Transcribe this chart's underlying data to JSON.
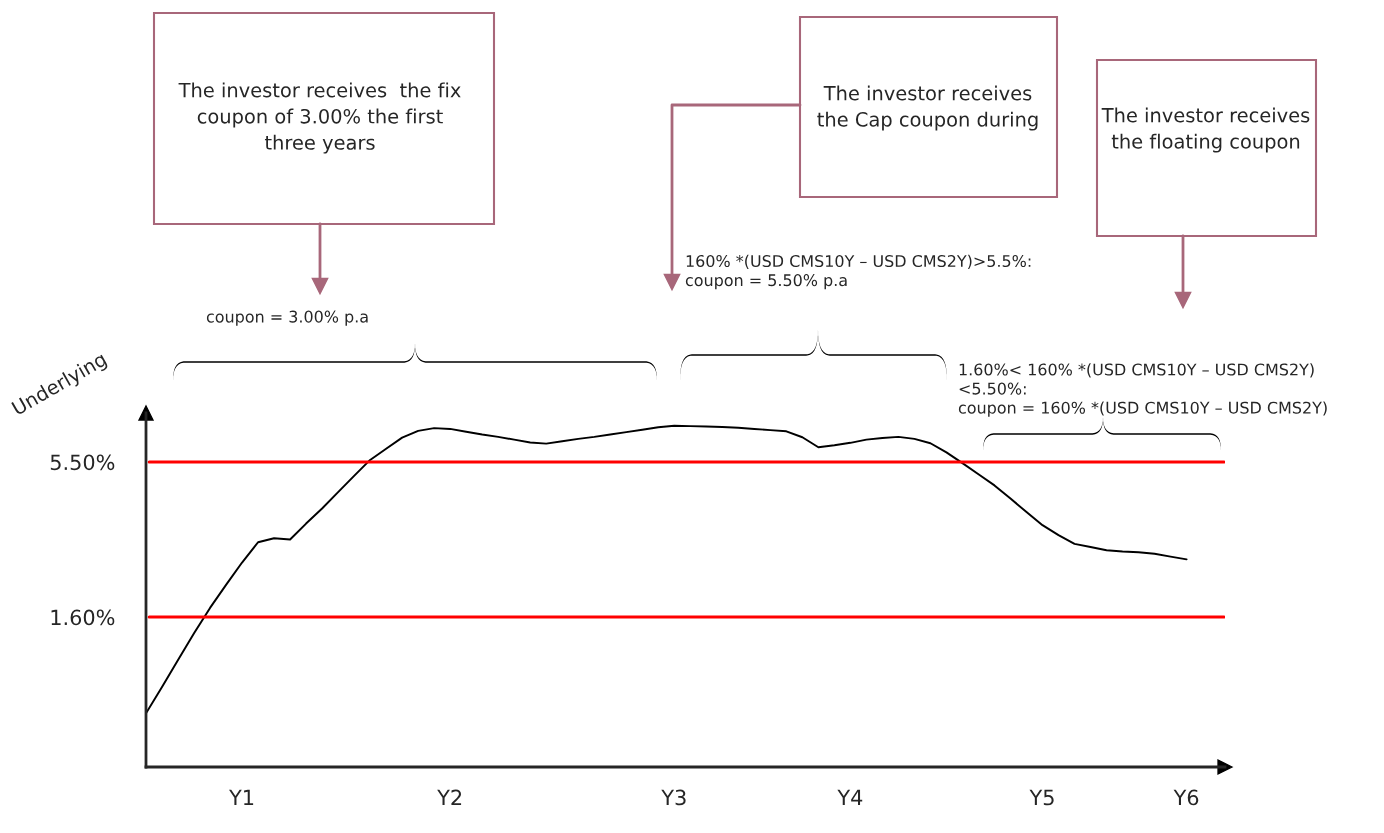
{
  "chart_data": {
    "type": "line",
    "ylabel": "Underlying",
    "categories": [
      null,
      null,
      null,
      null,
      null,
      null,
      "Y1",
      null,
      null,
      null,
      null,
      null,
      null,
      null,
      null,
      null,
      null,
      null,
      null,
      "Y2",
      null,
      null,
      null,
      null,
      null,
      null,
      null,
      null,
      null,
      null,
      null,
      null,
      null,
      "Y3",
      null,
      null,
      null,
      null,
      null,
      null,
      null,
      null,
      null,
      null,
      "Y4",
      null,
      null,
      null,
      null,
      null,
      null,
      null,
      null,
      null,
      null,
      null,
      "Y5",
      null,
      null,
      null,
      null,
      null,
      null,
      null,
      null,
      "Y6",
      null,
      null
    ],
    "ylim": [
      -2.17,
      6.73
    ],
    "yticks": [
      {
        "value": 1.6,
        "label": "1.60%"
      },
      {
        "value": 5.5,
        "label": "5.50%"
      }
    ],
    "series": [
      {
        "color": "#000000",
        "values": [
          -0.82,
          -0.16,
          0.52,
          1.19,
          1.83,
          2.41,
          2.97,
          3.48,
          3.58,
          3.55,
          3.95,
          4.33,
          4.74,
          5.15,
          5.55,
          5.83,
          6.11,
          6.28,
          6.35,
          6.33,
          6.26,
          6.19,
          6.13,
          6.06,
          5.99,
          5.96,
          6.02,
          6.08,
          6.13,
          6.19,
          6.25,
          6.31,
          6.37,
          6.41,
          6.4,
          6.39,
          6.38,
          6.36,
          6.33,
          6.3,
          6.27,
          6.12,
          5.87,
          5.92,
          5.98,
          6.06,
          6.1,
          6.13,
          6.08,
          5.97,
          5.74,
          5.47,
          5.19,
          4.91,
          4.58,
          4.24,
          3.91,
          3.66,
          3.44,
          3.36,
          3.28,
          3.25,
          3.23,
          3.19,
          3.12,
          3.05,
          null,
          null
        ]
      }
    ],
    "ref_lines": [
      {
        "axis": "y",
        "value": 5.5,
        "color": "#ff0000"
      },
      {
        "axis": "y",
        "value": 1.6,
        "color": "#ff0000"
      }
    ],
    "annotations": [
      "The investor receives  the fix\ncoupon of 3.00% the first\nthree years",
      "The investor receives\nthe Cap coupon during",
      "The investor receives\nthe floating coupon",
      "coupon = 3.00% p.a",
      "160% *(USD CMS10Y – USD CMS2Y)>5.5%:\ncoupon = 5.50% p.a",
      "1.60%< 160% *(USD CMS10Y – USD CMS2Y)\n<5.50%:\ncoupon = 160% *(USD CMS10Y – USD CMS2Y)"
    ],
    "grid": false,
    "legend": false,
    "marker": "none",
    "line_style": "solid"
  }
}
